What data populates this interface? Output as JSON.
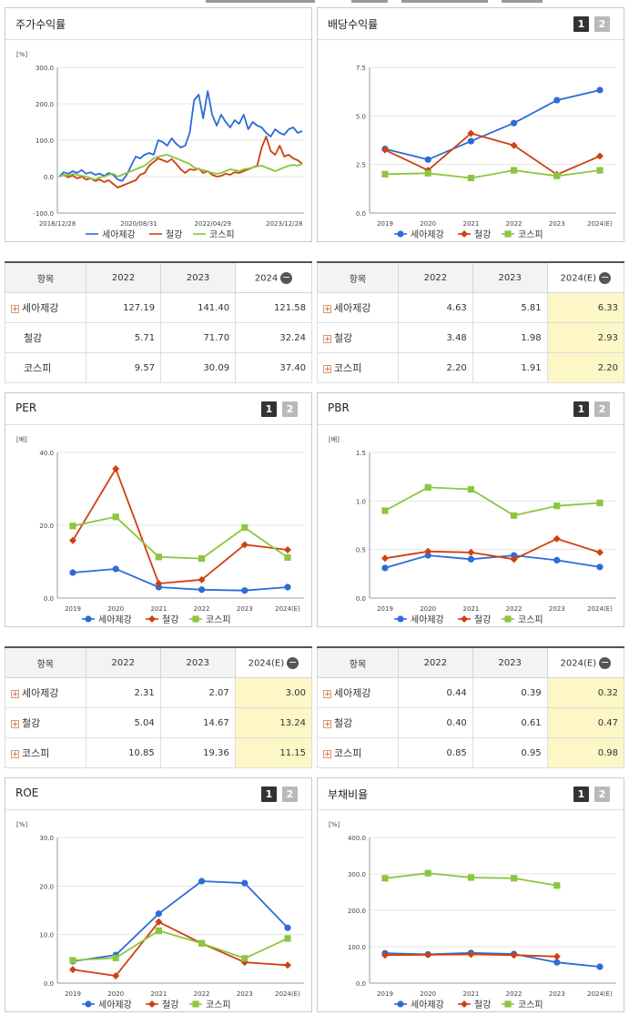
{
  "colors": {
    "sea": "#2d6bd8",
    "steel": "#d04010",
    "kospi": "#8cc63f"
  },
  "legend": [
    "세아제강",
    "철강",
    "코스피"
  ],
  "panels": {
    "stock": {
      "title": "주가수익률"
    },
    "div": {
      "title": "배당수익률"
    },
    "per": {
      "title": "PER"
    },
    "pbr": {
      "title": "PBR"
    },
    "roe": {
      "title": "ROE"
    },
    "debt": {
      "title": "부채비율"
    }
  },
  "pager": {
    "p1": "1",
    "p2": "2"
  },
  "tables": {
    "stock": {
      "head": [
        "항목",
        "2022",
        "2023",
        "2024"
      ],
      "rows": [
        {
          "label": "세아제강",
          "plus": true,
          "v": [
            "127.19",
            "141.40",
            "121.58"
          ]
        },
        {
          "label": "철강",
          "plus": false,
          "v": [
            "5.71",
            "71.70",
            "32.24"
          ]
        },
        {
          "label": "코스피",
          "plus": false,
          "v": [
            "9.57",
            "30.09",
            "37.40"
          ]
        }
      ]
    },
    "div": {
      "head": [
        "항목",
        "2022",
        "2023",
        "2024(E)"
      ],
      "rows": [
        {
          "label": "세아제강",
          "plus": true,
          "v": [
            "4.63",
            "5.81",
            "6.33"
          ]
        },
        {
          "label": "철강",
          "plus": true,
          "v": [
            "3.48",
            "1.98",
            "2.93"
          ]
        },
        {
          "label": "코스피",
          "plus": true,
          "v": [
            "2.20",
            "1.91",
            "2.20"
          ]
        }
      ]
    },
    "per": {
      "head": [
        "항목",
        "2022",
        "2023",
        "2024(E)"
      ],
      "rows": [
        {
          "label": "세아제강",
          "plus": true,
          "v": [
            "2.31",
            "2.07",
            "3.00"
          ]
        },
        {
          "label": "철강",
          "plus": true,
          "v": [
            "5.04",
            "14.67",
            "13.24"
          ]
        },
        {
          "label": "코스피",
          "plus": true,
          "v": [
            "10.85",
            "19.36",
            "11.15"
          ]
        }
      ]
    },
    "pbr": {
      "head": [
        "항목",
        "2022",
        "2023",
        "2024(E)"
      ],
      "rows": [
        {
          "label": "세아제강",
          "plus": true,
          "v": [
            "0.44",
            "0.39",
            "0.32"
          ]
        },
        {
          "label": "철강",
          "plus": true,
          "v": [
            "0.40",
            "0.61",
            "0.47"
          ]
        },
        {
          "label": "코스피",
          "plus": true,
          "v": [
            "0.85",
            "0.95",
            "0.98"
          ]
        }
      ]
    }
  },
  "chart_data": [
    {
      "id": "stock",
      "type": "line",
      "ylabel": "[%]",
      "ylim": [
        -100,
        300
      ],
      "yticks": [
        "-100.0",
        "0.0",
        "100.0",
        "200.0",
        "300.0"
      ],
      "xticks": [
        "2018/12/28",
        "2020/08/31",
        "2022/04/29",
        "2023/12/28"
      ],
      "series": [
        {
          "name": "세아제강",
          "values": [
            0,
            12,
            8,
            15,
            10,
            18,
            8,
            12,
            5,
            8,
            2,
            10,
            5,
            -8,
            -12,
            5,
            30,
            55,
            50,
            60,
            65,
            60,
            100,
            95,
            85,
            105,
            90,
            80,
            85,
            120,
            210,
            225,
            160,
            235,
            170,
            140,
            170,
            150,
            135,
            155,
            145,
            170,
            130,
            150,
            140,
            135,
            120,
            110,
            130,
            120,
            115,
            130,
            135,
            120,
            125
          ]
        },
        {
          "name": "철강",
          "values": [
            0,
            5,
            -2,
            3,
            -5,
            0,
            -8,
            -5,
            -12,
            -8,
            -15,
            -10,
            -20,
            -30,
            -25,
            -20,
            -15,
            -10,
            5,
            10,
            30,
            40,
            50,
            45,
            40,
            48,
            35,
            20,
            10,
            20,
            18,
            22,
            10,
            15,
            5,
            0,
            2,
            8,
            5,
            12,
            10,
            15,
            20,
            25,
            30,
            80,
            110,
            70,
            60,
            85,
            55,
            60,
            50,
            45,
            35
          ]
        },
        {
          "name": "코스피",
          "values": [
            0,
            5,
            3,
            8,
            5,
            2,
            0,
            -5,
            -8,
            -2,
            0,
            5,
            8,
            0,
            5,
            10,
            15,
            20,
            25,
            30,
            40,
            50,
            55,
            58,
            60,
            55,
            50,
            45,
            40,
            35,
            25,
            20,
            18,
            15,
            10,
            8,
            10,
            15,
            20,
            18,
            15,
            20,
            22,
            25,
            28,
            30,
            25,
            20,
            15,
            20,
            25,
            30,
            32,
            30,
            35
          ]
        }
      ]
    },
    {
      "id": "div",
      "type": "line",
      "ylim": [
        0,
        7.5
      ],
      "yticks": [
        "0.0",
        "2.5",
        "5.0",
        "7.5"
      ],
      "categories": [
        "2019",
        "2020",
        "2021",
        "2022",
        "2023",
        "2024(E)"
      ],
      "series": [
        {
          "name": "세아제강",
          "values": [
            3.3,
            2.75,
            3.7,
            4.63,
            5.81,
            6.33
          ]
        },
        {
          "name": "철강",
          "values": [
            3.25,
            2.2,
            4.1,
            3.48,
            1.98,
            2.93
          ]
        },
        {
          "name": "코스피",
          "values": [
            2.0,
            2.05,
            1.8,
            2.2,
            1.91,
            2.2
          ]
        }
      ]
    },
    {
      "id": "per",
      "type": "line",
      "ylabel": "[배]",
      "ylim": [
        0,
        40
      ],
      "yticks": [
        "0.0",
        "20.0",
        "40.0"
      ],
      "categories": [
        "2019",
        "2020",
        "2021",
        "2022",
        "2023",
        "2024(E)"
      ],
      "series": [
        {
          "name": "세아제강",
          "values": [
            7.0,
            8.0,
            3.0,
            2.31,
            2.07,
            3.0
          ]
        },
        {
          "name": "철강",
          "values": [
            15.8,
            35.5,
            4.0,
            5.04,
            14.67,
            13.24
          ]
        },
        {
          "name": "코스피",
          "values": [
            19.8,
            22.3,
            11.3,
            10.85,
            19.36,
            11.15
          ]
        }
      ]
    },
    {
      "id": "pbr",
      "type": "line",
      "ylabel": "[배]",
      "ylim": [
        0,
        1.5
      ],
      "yticks": [
        "0.0",
        "0.5",
        "1.0",
        "1.5"
      ],
      "categories": [
        "2019",
        "2020",
        "2021",
        "2022",
        "2023",
        "2024(E)"
      ],
      "series": [
        {
          "name": "세아제강",
          "values": [
            0.31,
            0.44,
            0.4,
            0.44,
            0.39,
            0.32
          ]
        },
        {
          "name": "철강",
          "values": [
            0.41,
            0.48,
            0.47,
            0.4,
            0.61,
            0.47
          ]
        },
        {
          "name": "코스피",
          "values": [
            0.9,
            1.14,
            1.12,
            0.85,
            0.95,
            0.98
          ]
        }
      ]
    },
    {
      "id": "roe",
      "type": "line",
      "ylabel": "[%]",
      "ylim": [
        0,
        30
      ],
      "yticks": [
        "0.0",
        "10.0",
        "20.0",
        "30.0"
      ],
      "categories": [
        "2019",
        "2020",
        "2021",
        "2022",
        "2023",
        "2024(E)"
      ],
      "series": [
        {
          "name": "세아제강",
          "values": [
            4.5,
            5.8,
            14.3,
            21.0,
            20.6,
            11.4
          ]
        },
        {
          "name": "철강",
          "values": [
            2.8,
            1.5,
            12.6,
            8.2,
            4.3,
            3.7
          ]
        },
        {
          "name": "코스피",
          "values": [
            4.7,
            5.2,
            10.8,
            8.2,
            5.1,
            9.2
          ]
        }
      ]
    },
    {
      "id": "debt",
      "type": "line",
      "ylabel": "[%]",
      "ylim": [
        0,
        400
      ],
      "yticks": [
        "0.0",
        "100.0",
        "200.0",
        "300.0",
        "400.0"
      ],
      "categories": [
        "2019",
        "2020",
        "2021",
        "2022",
        "2023",
        "2024(E)"
      ],
      "series": [
        {
          "name": "세아제강",
          "values": [
            82,
            79,
            83,
            80,
            57,
            45
          ]
        },
        {
          "name": "철강",
          "values": [
            77,
            78,
            79,
            77,
            73,
            null
          ]
        },
        {
          "name": "코스피",
          "values": [
            288,
            302,
            290,
            288,
            268,
            null
          ]
        }
      ]
    }
  ]
}
